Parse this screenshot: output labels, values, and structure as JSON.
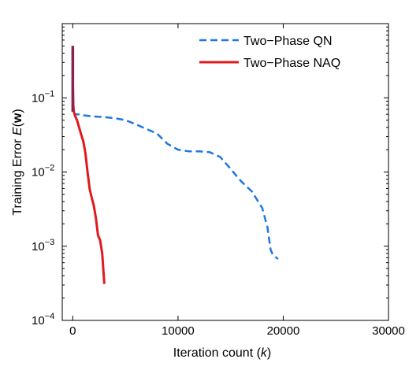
{
  "chart_data": {
    "type": "line",
    "title": "",
    "xlabel": {
      "prefix": "Iteration count (",
      "var": "k",
      "suffix": ")"
    },
    "ylabel": {
      "prefix": "Training Error ",
      "var": "E",
      "open": "(",
      "bold": "w",
      "close": ")"
    },
    "xlim": [
      -1000,
      30000
    ],
    "ylim": [
      0.0001,
      1
    ],
    "yscale": "log",
    "x_ticks": [
      0,
      10000,
      20000,
      30000
    ],
    "x_tick_labels": [
      "0",
      "10000",
      "20000",
      "30000"
    ],
    "y_ticks": [
      0.1,
      0.01,
      0.001,
      0.0001
    ],
    "y_tick_labels": [
      {
        "base": "10",
        "exp": "−1"
      },
      {
        "base": "10",
        "exp": "−2"
      },
      {
        "base": "10",
        "exp": "−3"
      },
      {
        "base": "10",
        "exp": "−4"
      }
    ],
    "grid": false,
    "legend_position": "top-right",
    "series": [
      {
        "name": "Two−Phase QN",
        "style": "dashed",
        "color": "#1f77e0",
        "x": [
          0,
          5,
          10,
          50,
          100,
          200,
          500,
          1000,
          2000,
          3000,
          4000,
          5000,
          6000,
          7000,
          8000,
          9000,
          10000,
          11000,
          12000,
          13000,
          14000,
          15000,
          16000,
          17000,
          18000,
          18500,
          18800,
          19000,
          19500
        ],
        "y": [
          0.5,
          0.3,
          0.15,
          0.08,
          0.065,
          0.06,
          0.06,
          0.058,
          0.056,
          0.055,
          0.053,
          0.05,
          0.044,
          0.038,
          0.033,
          0.024,
          0.02,
          0.019,
          0.019,
          0.0185,
          0.016,
          0.011,
          0.0075,
          0.0055,
          0.0033,
          0.0018,
          0.0009,
          0.00077,
          0.00067
        ]
      },
      {
        "name": "Two−Phase NAQ",
        "style": "solid",
        "color": "#e0191d",
        "x": [
          0,
          5,
          10,
          50,
          100,
          200,
          400,
          600,
          800,
          1000,
          1200,
          1400,
          1600,
          1800,
          2000,
          2200,
          2400,
          2600,
          2800,
          3000
        ],
        "y": [
          0.5,
          0.3,
          0.15,
          0.08,
          0.065,
          0.058,
          0.05,
          0.04,
          0.032,
          0.026,
          0.018,
          0.01,
          0.006,
          0.0045,
          0.0035,
          0.0024,
          0.0014,
          0.0012,
          0.0008,
          0.00031
        ]
      }
    ],
    "overlay_color": "#8b2250"
  }
}
